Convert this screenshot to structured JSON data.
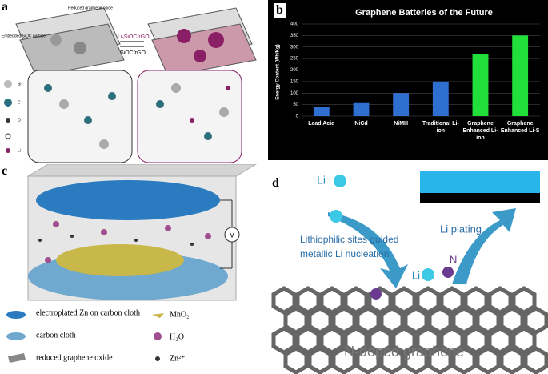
{
  "panel_a": {
    "label": "a",
    "texts": [
      "Reduced graphene oxide",
      "Embedded SiOC particle",
      "LiₓSiOC/rGO",
      "SiOC/rGO"
    ],
    "legend": [
      "Si",
      "C",
      "O",
      "Li"
    ]
  },
  "chart_data": {
    "type": "bar",
    "panel_label": "b",
    "title": "Graphene Batteries of the Future",
    "y_label": "Energy Content (Wh/Kg)",
    "categories": [
      "Lead Acid",
      "NiCd",
      "NiMH",
      "Traditional Li-ion",
      "Graphene Enhanced Li-ion",
      "Graphene Enhanced Li-S"
    ],
    "values": [
      40,
      60,
      100,
      150,
      270,
      350
    ],
    "colors": [
      "#2f6fd0",
      "#2f6fd0",
      "#2f6fd0",
      "#2f6fd0",
      "#22e03a",
      "#22e03a"
    ],
    "ylim": [
      0,
      400
    ],
    "yticks": [
      0,
      50,
      100,
      150,
      200,
      250,
      300,
      350,
      400
    ],
    "grid": true
  },
  "panel_c": {
    "label": "c",
    "meter": "V",
    "legend": [
      "electroplated Zn on carbon cloth",
      "carbon cloth",
      "reduced graphene oxide",
      "MnO₂",
      "H₂O",
      "Zn²⁺"
    ]
  },
  "panel_d": {
    "label": "d",
    "li_1": "Li",
    "li_2": "Li",
    "caption_1": "Lithiophilic sites guided",
    "caption_2": "metallic Li nucleation",
    "plating": "Li plating",
    "n_atom": "N",
    "graphene": "N-doped graphene"
  }
}
